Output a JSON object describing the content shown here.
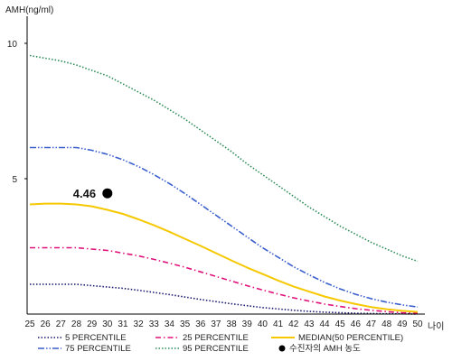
{
  "chart_data": {
    "type": "line",
    "ylabel": "AMH(ng/ml)",
    "xlabel": "나이",
    "ylim": [
      0,
      11
    ],
    "xlim": [
      25,
      50
    ],
    "x": [
      25,
      26,
      27,
      28,
      29,
      30,
      31,
      32,
      33,
      34,
      35,
      36,
      37,
      38,
      39,
      40,
      41,
      42,
      43,
      44,
      45,
      46,
      47,
      48,
      49,
      50
    ],
    "yticks": [
      5,
      10
    ],
    "series": [
      {
        "name": "5 PERCENTILE",
        "color": "#1a1a6e",
        "dash": "dotted",
        "values": [
          1.1,
          1.1,
          1.1,
          1.1,
          1.05,
          1.0,
          0.95,
          0.88,
          0.8,
          0.72,
          0.63,
          0.54,
          0.46,
          0.38,
          0.31,
          0.24,
          0.19,
          0.14,
          0.1,
          0.07,
          0.05,
          0.03,
          0.02,
          0.01,
          0.01,
          0.0
        ]
      },
      {
        "name": "25 PERCENTILE",
        "color": "#e0107a",
        "dash": "dashdot",
        "values": [
          2.45,
          2.45,
          2.45,
          2.45,
          2.4,
          2.35,
          2.25,
          2.15,
          2.02,
          1.88,
          1.73,
          1.56,
          1.39,
          1.22,
          1.05,
          0.89,
          0.74,
          0.6,
          0.48,
          0.37,
          0.28,
          0.2,
          0.14,
          0.09,
          0.05,
          0.03
        ]
      },
      {
        "name": "MEDIAN(50 PERCENTILE)",
        "color": "#f5c800",
        "dash": "solid",
        "values": [
          4.05,
          4.08,
          4.08,
          4.05,
          3.98,
          3.85,
          3.7,
          3.5,
          3.28,
          3.04,
          2.78,
          2.52,
          2.25,
          1.98,
          1.72,
          1.48,
          1.24,
          1.02,
          0.83,
          0.65,
          0.5,
          0.37,
          0.26,
          0.18,
          0.12,
          0.08
        ]
      },
      {
        "name": "75 PERCENTILE",
        "color": "#3a5fcd",
        "dash": "dashdotdot",
        "values": [
          6.15,
          6.15,
          6.15,
          6.15,
          6.05,
          5.9,
          5.7,
          5.45,
          5.15,
          4.82,
          4.45,
          4.05,
          3.65,
          3.25,
          2.85,
          2.45,
          2.1,
          1.75,
          1.45,
          1.17,
          0.93,
          0.73,
          0.57,
          0.44,
          0.34,
          0.26
        ]
      },
      {
        "name": "95 PERCENTILE",
        "color": "#2e8b57",
        "dash": "dotted",
        "values": [
          9.55,
          9.45,
          9.35,
          9.2,
          9.0,
          8.8,
          8.5,
          8.2,
          7.9,
          7.55,
          7.2,
          6.8,
          6.4,
          6.0,
          5.55,
          5.15,
          4.75,
          4.35,
          3.95,
          3.6,
          3.25,
          2.95,
          2.65,
          2.4,
          2.15,
          1.95
        ]
      }
    ],
    "patient": {
      "name": "수진자의 AMH 농도",
      "x": 30,
      "y": 4.46,
      "label": "4.46",
      "color": "#000000"
    },
    "legend": {
      "position": "bottom"
    }
  }
}
